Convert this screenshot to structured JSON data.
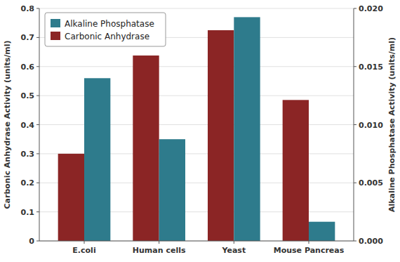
{
  "chart_data": {
    "type": "bar",
    "categories": [
      "E.coli",
      "Human cells",
      "Yeast",
      "Mouse Pancreas"
    ],
    "series": [
      {
        "name": "Carbonic Anhydrase",
        "color": "#8B2525",
        "values": [
          0.3,
          0.638,
          0.725,
          0.485
        ]
      },
      {
        "name": "Alkaline Phosphatase",
        "color": "#2E7B8C",
        "values": [
          0.014,
          0.00875,
          0.01925,
          0.00165
        ],
        "axis": "y2"
      }
    ],
    "ylabel": "Carbonic Anhydrase Activity (units/ml)",
    "y2label": "Alkaline Phosphatase Activity (units/ml)",
    "ylim": [
      0,
      0.8
    ],
    "yticks": [
      0,
      0.1,
      0.2,
      0.3,
      0.4,
      0.5,
      0.6,
      0.7,
      0.8
    ],
    "y2lim": [
      0,
      0.02
    ],
    "y2ticks": [
      {
        "value": 0,
        "label": "0.000"
      },
      0.005,
      {
        "value": 0.01,
        "label": "0.010"
      },
      0.015,
      {
        "value": 0.02,
        "label": "0.020"
      }
    ],
    "grid": true,
    "legend": "upper-left"
  }
}
